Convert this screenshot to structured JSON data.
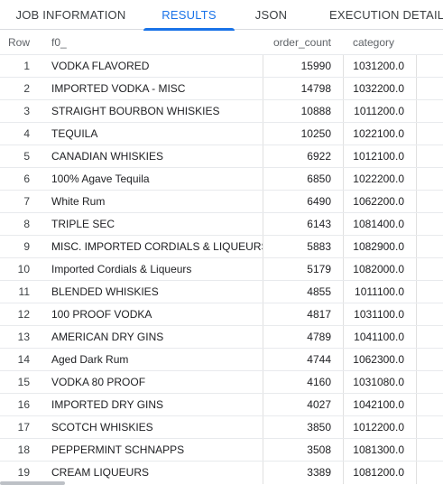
{
  "tabs": [
    {
      "label": "JOB INFORMATION"
    },
    {
      "label": "RESULTS"
    },
    {
      "label": "JSON"
    },
    {
      "label": "EXECUTION DETAILS"
    }
  ],
  "active_tab": "RESULTS",
  "columns": {
    "row": "Row",
    "f0": "f0_",
    "order_count": "order_count",
    "category": "category"
  },
  "rows": [
    {
      "row": "1",
      "f0": "VODKA FLAVORED",
      "order_count": "15990",
      "category": "1031200.0"
    },
    {
      "row": "2",
      "f0": "IMPORTED VODKA - MISC",
      "order_count": "14798",
      "category": "1032200.0"
    },
    {
      "row": "3",
      "f0": "STRAIGHT BOURBON WHISKIES",
      "order_count": "10888",
      "category": "1011200.0"
    },
    {
      "row": "4",
      "f0": "TEQUILA",
      "order_count": "10250",
      "category": "1022100.0"
    },
    {
      "row": "5",
      "f0": "CANADIAN WHISKIES",
      "order_count": "6922",
      "category": "1012100.0"
    },
    {
      "row": "6",
      "f0": "100% Agave Tequila",
      "order_count": "6850",
      "category": "1022200.0"
    },
    {
      "row": "7",
      "f0": "White Rum",
      "order_count": "6490",
      "category": "1062200.0"
    },
    {
      "row": "8",
      "f0": "TRIPLE SEC",
      "order_count": "6143",
      "category": "1081400.0"
    },
    {
      "row": "9",
      "f0": "MISC. IMPORTED CORDIALS & LIQUEURS",
      "order_count": "5883",
      "category": "1082900.0"
    },
    {
      "row": "10",
      "f0": "Imported Cordials & Liqueurs",
      "order_count": "5179",
      "category": "1082000.0"
    },
    {
      "row": "11",
      "f0": "BLENDED WHISKIES",
      "order_count": "4855",
      "category": "1011100.0"
    },
    {
      "row": "12",
      "f0": "100 PROOF VODKA",
      "order_count": "4817",
      "category": "1031100.0"
    },
    {
      "row": "13",
      "f0": "AMERICAN DRY GINS",
      "order_count": "4789",
      "category": "1041100.0"
    },
    {
      "row": "14",
      "f0": "Aged Dark Rum",
      "order_count": "4744",
      "category": "1062300.0"
    },
    {
      "row": "15",
      "f0": "VODKA 80 PROOF",
      "order_count": "4160",
      "category": "1031080.0"
    },
    {
      "row": "16",
      "f0": "IMPORTED DRY GINS",
      "order_count": "4027",
      "category": "1042100.0"
    },
    {
      "row": "17",
      "f0": "SCOTCH WHISKIES",
      "order_count": "3850",
      "category": "1012200.0"
    },
    {
      "row": "18",
      "f0": "PEPPERMINT SCHNAPPS",
      "order_count": "3508",
      "category": "1081300.0"
    },
    {
      "row": "19",
      "f0": "CREAM LIQUEURS",
      "order_count": "3389",
      "category": "1081200.0"
    }
  ]
}
